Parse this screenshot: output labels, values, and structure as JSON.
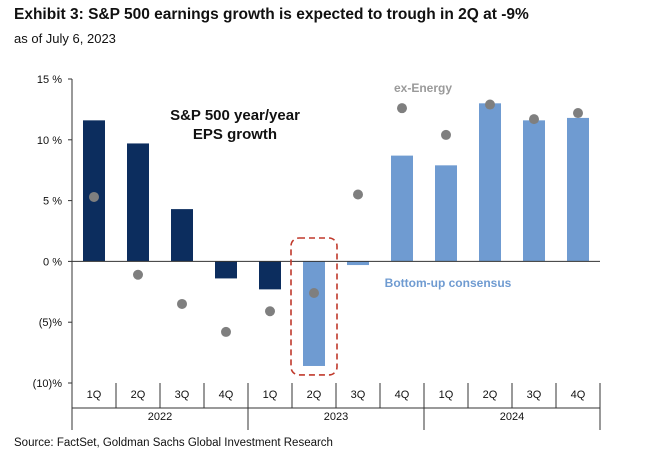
{
  "header": {
    "title": "Exhibit 3: S&P 500 earnings growth is expected to trough in 2Q at -9%",
    "subtitle": "as of July 6, 2023"
  },
  "footer": {
    "source": "Source: FactSet, Goldman Sachs Global Investment Research"
  },
  "chart_data": {
    "type": "bar",
    "categories": [
      "1Q",
      "2Q",
      "3Q",
      "4Q",
      "1Q",
      "2Q",
      "3Q",
      "4Q",
      "1Q",
      "2Q",
      "3Q",
      "4Q"
    ],
    "groups": [
      {
        "label": "2022",
        "from": 0,
        "to": 3
      },
      {
        "label": "2023",
        "from": 4,
        "to": 7
      },
      {
        "label": "2024",
        "from": 8,
        "to": 11
      }
    ],
    "series": [
      {
        "values": [
          11.6,
          9.7,
          4.3,
          -1.4,
          -2.3,
          -8.6,
          -0.3,
          8.7,
          7.9,
          13.0,
          11.6,
          11.8
        ]
      },
      {
        "values": [
          5.3,
          -1.1,
          -3.5,
          -5.8,
          -4.1,
          -2.6,
          5.5,
          12.6,
          10.4,
          12.9,
          11.7,
          12.2
        ],
        "label": "ex-Energy"
      }
    ],
    "bar_colors": [
      "#0c2d5e",
      "#0c2d5e",
      "#0c2d5e",
      "#0c2d5e",
      "#0c2d5e",
      "#6f9bd1",
      "#6f9bd1",
      "#6f9bd1",
      "#6f9bd1",
      "#6f9bd1",
      "#6f9bd1",
      "#6f9bd1"
    ],
    "dot_color": "#7f7f7f",
    "highlight_color": "#c0392b",
    "highlight_index": 5,
    "annotations": {
      "main_line1": "S&P 500 year/year",
      "main_line2": "EPS growth",
      "ex_energy": "ex-Energy",
      "consensus": "Bottom-up consensus"
    },
    "ylim": [
      -10,
      15
    ],
    "yticks": [
      15,
      10,
      5,
      0,
      -5,
      -10
    ],
    "ytick_labels": [
      "15 %",
      "10 %",
      "5 %",
      "0 %",
      "(5)%",
      "(10)%"
    ],
    "xlabel": "",
    "ylabel": ""
  }
}
